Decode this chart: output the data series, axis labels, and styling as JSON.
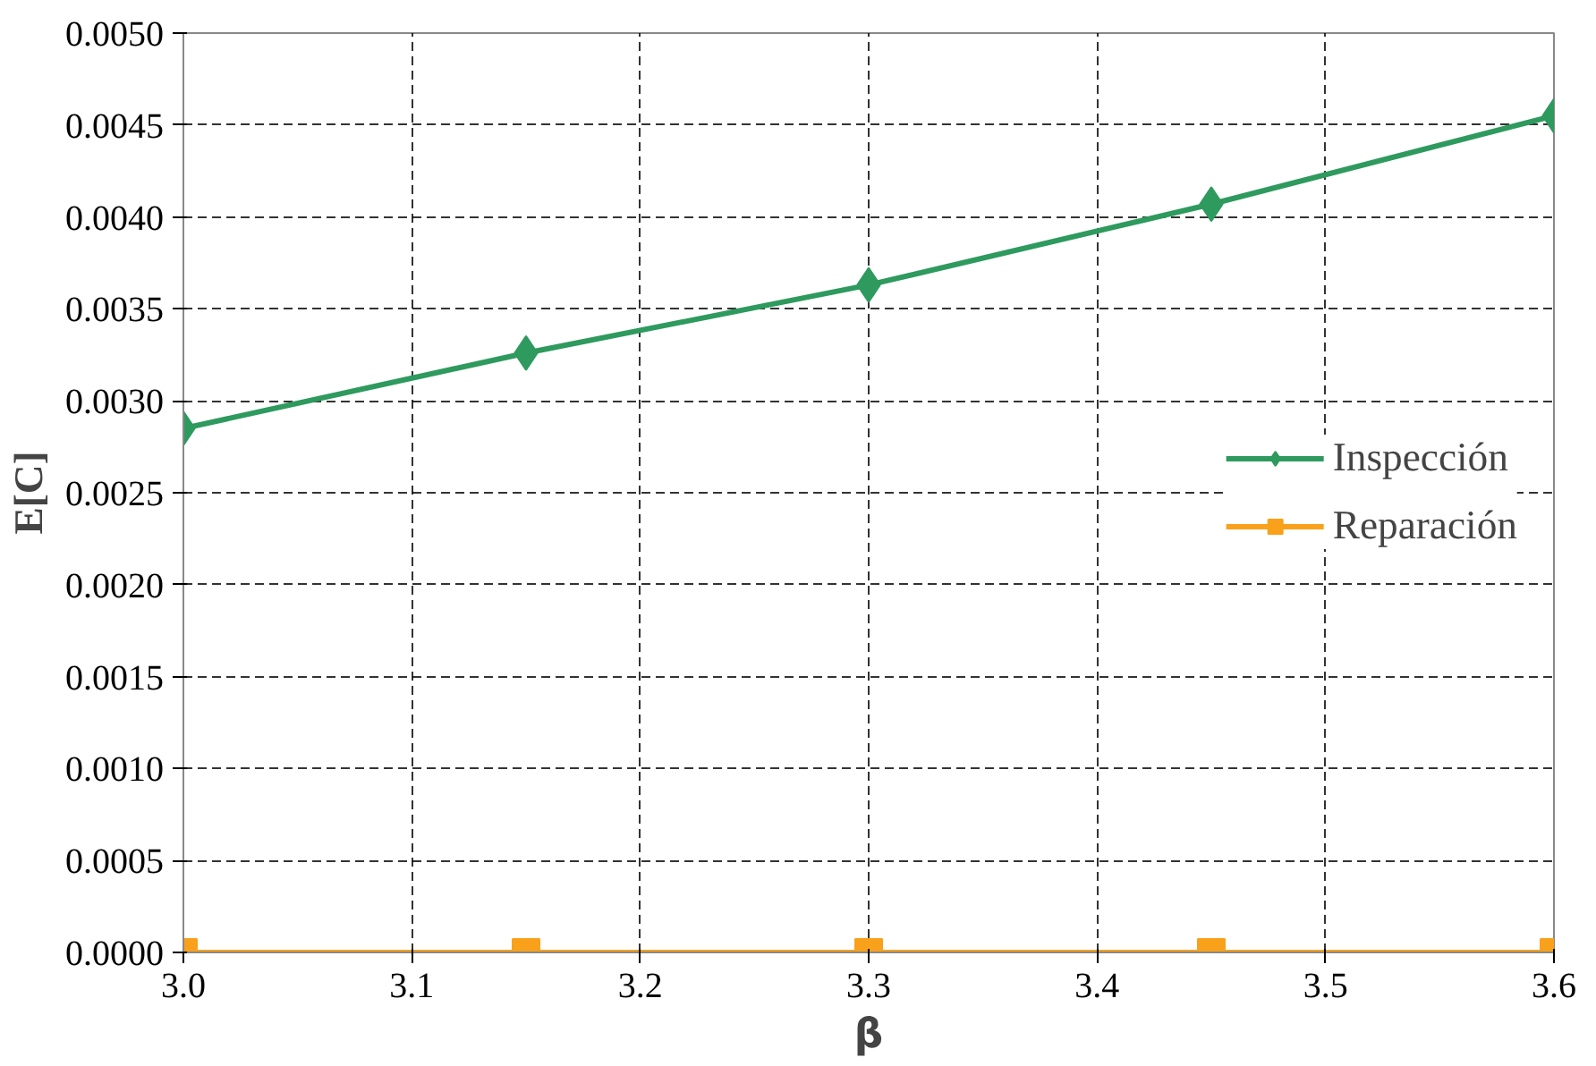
{
  "chart_data": {
    "type": "line",
    "xlabel": "β",
    "ylabel": "E[C]",
    "x": [
      3.0,
      3.15,
      3.3,
      3.45,
      3.6
    ],
    "series": [
      {
        "name": "Inspección",
        "color": "#2e9a5e",
        "marker": "diamond",
        "values": [
          0.00285,
          0.00326,
          0.00363,
          0.00407,
          0.00455
        ]
      },
      {
        "name": "Reparación",
        "color": "#f9a11b",
        "marker": "square",
        "values": [
          0.0,
          0.0,
          0.0,
          0.0,
          0.0
        ]
      }
    ],
    "xlim": [
      3.0,
      3.6
    ],
    "ylim": [
      0.0,
      0.005
    ],
    "xticks": [
      {
        "value": 3.0,
        "label": "3.0"
      },
      {
        "value": 3.1,
        "label": "3.1"
      },
      {
        "value": 3.2,
        "label": "3.2"
      },
      {
        "value": 3.3,
        "label": "3.3"
      },
      {
        "value": 3.4,
        "label": "3.4"
      },
      {
        "value": 3.5,
        "label": "3.5"
      },
      {
        "value": 3.6,
        "label": "3.6"
      }
    ],
    "yticks": [
      {
        "value": 0.0,
        "label": "0.0000"
      },
      {
        "value": 0.0005,
        "label": "0.0005"
      },
      {
        "value": 0.001,
        "label": "0.0010"
      },
      {
        "value": 0.0015,
        "label": "0.0015"
      },
      {
        "value": 0.002,
        "label": "0.0020"
      },
      {
        "value": 0.0025,
        "label": "0.0025"
      },
      {
        "value": 0.003,
        "label": "0.0030"
      },
      {
        "value": 0.0035,
        "label": "0.0035"
      },
      {
        "value": 0.004,
        "label": "0.0040"
      },
      {
        "value": 0.0045,
        "label": "0.0045"
      },
      {
        "value": 0.005,
        "label": "0.0050"
      }
    ],
    "grid": true,
    "legend": "right",
    "line_style": "solid"
  }
}
